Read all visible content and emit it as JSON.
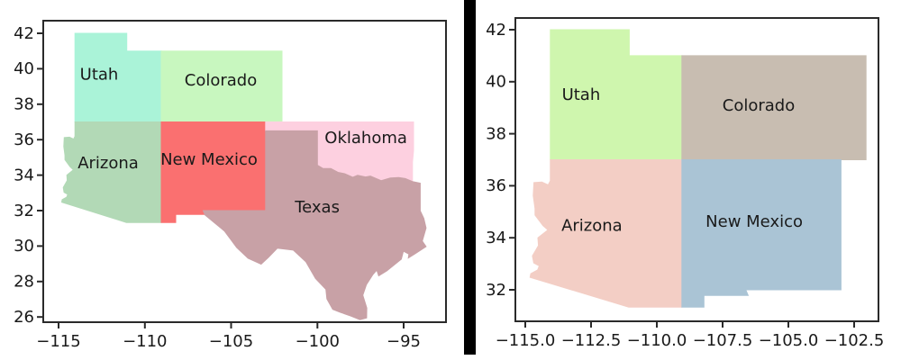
{
  "background_color": "#ffffff",
  "text_color": "#1a1a1a",
  "spine_color": "#2a2a2a",
  "divider": {
    "color": "#000000"
  },
  "chart_data": [
    {
      "type": "map",
      "title": "",
      "panel": "left",
      "xlabel": "",
      "ylabel": "",
      "grid": false,
      "xlim": [
        -115.888,
        -92.548
      ],
      "ylim": [
        25.706,
        42.711
      ],
      "x_ticks": [
        {
          "value": -115,
          "label": "−115"
        },
        {
          "value": -110,
          "label": "−110"
        },
        {
          "value": -105,
          "label": "−105"
        },
        {
          "value": -100,
          "label": "−100"
        },
        {
          "value": -95,
          "label": "−95"
        }
      ],
      "y_ticks": [
        {
          "value": 26,
          "label": "26"
        },
        {
          "value": 28,
          "label": "28"
        },
        {
          "value": 30,
          "label": "30"
        },
        {
          "value": 32,
          "label": "32"
        },
        {
          "value": 34,
          "label": "34"
        },
        {
          "value": 36,
          "label": "36"
        },
        {
          "value": 38,
          "label": "38"
        },
        {
          "value": 40,
          "label": "40"
        },
        {
          "value": 42,
          "label": "42"
        }
      ],
      "states": [
        {
          "name": "Utah",
          "label": "Utah",
          "color": "#aaf3d8",
          "label_lon": -112.65,
          "label_lat": 39.67,
          "polygon": [
            [
              -114.05,
              42
            ],
            [
              -111.05,
              42
            ],
            [
              -111.05,
              41
            ],
            [
              -109.05,
              41
            ],
            [
              -109.05,
              37
            ],
            [
              -114.05,
              37
            ]
          ]
        },
        {
          "name": "Colorado",
          "label": "Colorado",
          "color": "#c8f7bf",
          "label_lon": -105.6,
          "label_lat": 39.36,
          "polygon": [
            [
              -109.05,
              41
            ],
            [
              -102.05,
              41
            ],
            [
              -102.05,
              37
            ],
            [
              -109.05,
              37
            ]
          ]
        },
        {
          "name": "Arizona",
          "label": "Arizona",
          "color": "#b2d9b6",
          "label_lon": -112.13,
          "label_lat": 34.69,
          "polygon": [
            [
              -114.05,
              37
            ],
            [
              -109.05,
              37
            ],
            [
              -109.05,
              31.33
            ],
            [
              -111.07,
              31.33
            ],
            [
              -114.82,
              32.48
            ],
            [
              -114.79,
              32.62
            ],
            [
              -114.53,
              32.76
            ],
            [
              -114.47,
              32.92
            ],
            [
              -114.68,
              33.03
            ],
            [
              -114.73,
              33.3
            ],
            [
              -114.5,
              33.7
            ],
            [
              -114.52,
              34.0
            ],
            [
              -114.14,
              34.3
            ],
            [
              -114.33,
              34.47
            ],
            [
              -114.63,
              34.87
            ],
            [
              -114.63,
              35.12
            ],
            [
              -114.7,
              35.62
            ],
            [
              -114.67,
              36.12
            ],
            [
              -114.37,
              36.14
            ],
            [
              -114.13,
              36.03
            ],
            [
              -114.05,
              36.19
            ]
          ]
        },
        {
          "name": "New Mexico",
          "label": "New Mexico",
          "color": "#fa7070",
          "label_lon": -106.28,
          "label_lat": 34.89,
          "polygon": [
            [
              -109.05,
              37
            ],
            [
              -103.0,
              37
            ],
            [
              -103.0,
              32.0
            ],
            [
              -106.62,
              32.0
            ],
            [
              -106.53,
              31.78
            ],
            [
              -108.21,
              31.78
            ],
            [
              -108.21,
              31.33
            ],
            [
              -109.05,
              31.33
            ]
          ]
        },
        {
          "name": "Oklahoma",
          "label": "Oklahoma",
          "color": "#fdd0e0",
          "label_lon": -97.19,
          "label_lat": 36.11,
          "polygon": [
            [
              -103.0,
              37.0
            ],
            [
              -94.43,
              37.0
            ],
            [
              -94.43,
              35.4
            ],
            [
              -94.49,
              34.73
            ],
            [
              -94.49,
              33.64
            ],
            [
              -94.91,
              33.81
            ],
            [
              -95.29,
              33.87
            ],
            [
              -95.77,
              33.84
            ],
            [
              -96.31,
              33.69
            ],
            [
              -96.93,
              33.95
            ],
            [
              -97.21,
              33.9
            ],
            [
              -97.67,
              33.99
            ],
            [
              -97.95,
              33.88
            ],
            [
              -98.42,
              34.08
            ],
            [
              -98.81,
              34.16
            ],
            [
              -99.22,
              34.37
            ],
            [
              -99.69,
              34.38
            ],
            [
              -99.99,
              34.56
            ],
            [
              -100.0,
              36.5
            ],
            [
              -103.0,
              36.5
            ]
          ]
        },
        {
          "name": "Texas",
          "label": "Texas",
          "color": "#c8a1a6",
          "label_lon": -100.01,
          "label_lat": 32.2,
          "polygon": [
            [
              -103.0,
              36.5
            ],
            [
              -100.0,
              36.5
            ],
            [
              -100.0,
              34.56
            ],
            [
              -99.69,
              34.38
            ],
            [
              -99.22,
              34.37
            ],
            [
              -98.81,
              34.16
            ],
            [
              -98.42,
              34.08
            ],
            [
              -97.95,
              33.88
            ],
            [
              -97.67,
              33.99
            ],
            [
              -97.21,
              33.9
            ],
            [
              -96.93,
              33.95
            ],
            [
              -96.31,
              33.69
            ],
            [
              -95.77,
              33.84
            ],
            [
              -95.29,
              33.87
            ],
            [
              -94.91,
              33.81
            ],
            [
              -94.49,
              33.64
            ],
            [
              -94.04,
              33.55
            ],
            [
              -94.04,
              31.99
            ],
            [
              -93.83,
              31.56
            ],
            [
              -93.7,
              31.02
            ],
            [
              -93.92,
              30.28
            ],
            [
              -93.7,
              29.97
            ],
            [
              -94.35,
              29.56
            ],
            [
              -94.73,
              29.33
            ],
            [
              -94.7,
              29.55
            ],
            [
              -95.02,
              29.71
            ],
            [
              -95.14,
              29.26
            ],
            [
              -95.98,
              28.6
            ],
            [
              -96.45,
              28.32
            ],
            [
              -96.56,
              28.64
            ],
            [
              -96.78,
              28.4
            ],
            [
              -97.16,
              27.83
            ],
            [
              -97.37,
              27.23
            ],
            [
              -97.14,
              26.51
            ],
            [
              -97.15,
              25.95
            ],
            [
              -97.53,
              25.85
            ],
            [
              -98.08,
              26.06
            ],
            [
              -98.69,
              26.27
            ],
            [
              -99.11,
              26.43
            ],
            [
              -99.45,
              27.02
            ],
            [
              -99.51,
              27.56
            ],
            [
              -100.11,
              28.17
            ],
            [
              -100.67,
              29.11
            ],
            [
              -101.4,
              29.77
            ],
            [
              -102.32,
              29.88
            ],
            [
              -102.84,
              29.36
            ],
            [
              -103.26,
              28.98
            ],
            [
              -104.02,
              29.31
            ],
            [
              -104.68,
              29.92
            ],
            [
              -105.39,
              30.85
            ],
            [
              -106.51,
              31.75
            ],
            [
              -106.62,
              32.0
            ],
            [
              -103.0,
              32.0
            ]
          ]
        }
      ]
    },
    {
      "type": "map",
      "title": "",
      "panel": "right",
      "xlabel": "",
      "ylabel": "",
      "grid": false,
      "xlim": [
        -115.377,
        -101.577
      ],
      "ylim": [
        30.788,
        42.45
      ],
      "x_ticks": [
        {
          "value": -115.0,
          "label": "−115.0"
        },
        {
          "value": -112.5,
          "label": "−112.5"
        },
        {
          "value": -110.0,
          "label": "−110.0"
        },
        {
          "value": -107.5,
          "label": "−107.5"
        },
        {
          "value": -105.0,
          "label": "−105.0"
        },
        {
          "value": -102.5,
          "label": "−102.5"
        }
      ],
      "y_ticks": [
        {
          "value": 32,
          "label": "32"
        },
        {
          "value": 34,
          "label": "34"
        },
        {
          "value": 36,
          "label": "36"
        },
        {
          "value": 38,
          "label": "38"
        },
        {
          "value": 40,
          "label": "40"
        },
        {
          "value": 42,
          "label": "42"
        }
      ],
      "states": [
        {
          "name": "Utah",
          "label": "Utah",
          "color": "#cff6ae",
          "label_lon": -112.88,
          "label_lat": 39.51,
          "polygon": [
            [
              -114.05,
              42
            ],
            [
              -111.05,
              42
            ],
            [
              -111.05,
              41
            ],
            [
              -109.05,
              41
            ],
            [
              -109.05,
              37
            ],
            [
              -114.05,
              37
            ]
          ]
        },
        {
          "name": "Colorado",
          "label": "Colorado",
          "color": "#c8bdb1",
          "label_lon": -106.13,
          "label_lat": 39.09,
          "polygon": [
            [
              -109.05,
              41
            ],
            [
              -102.05,
              41
            ],
            [
              -102.05,
              37
            ],
            [
              -109.05,
              37
            ]
          ]
        },
        {
          "name": "Arizona",
          "label": "Arizona",
          "color": "#f3cec5",
          "label_lon": -112.47,
          "label_lat": 34.46,
          "polygon": [
            [
              -114.05,
              37
            ],
            [
              -109.05,
              37
            ],
            [
              -109.05,
              31.33
            ],
            [
              -111.07,
              31.33
            ],
            [
              -114.82,
              32.48
            ],
            [
              -114.79,
              32.62
            ],
            [
              -114.53,
              32.76
            ],
            [
              -114.47,
              32.92
            ],
            [
              -114.68,
              33.03
            ],
            [
              -114.73,
              33.3
            ],
            [
              -114.5,
              33.7
            ],
            [
              -114.52,
              34.0
            ],
            [
              -114.14,
              34.3
            ],
            [
              -114.33,
              34.47
            ],
            [
              -114.63,
              34.87
            ],
            [
              -114.63,
              35.12
            ],
            [
              -114.7,
              35.62
            ],
            [
              -114.67,
              36.12
            ],
            [
              -114.37,
              36.14
            ],
            [
              -114.13,
              36.03
            ],
            [
              -114.05,
              36.19
            ]
          ]
        },
        {
          "name": "New Mexico",
          "label": "New Mexico",
          "color": "#aac4d5",
          "label_lon": -106.3,
          "label_lat": 34.63,
          "polygon": [
            [
              -109.05,
              37
            ],
            [
              -103.0,
              37
            ],
            [
              -103.0,
              32.0
            ],
            [
              -106.62,
              32.0
            ],
            [
              -106.53,
              31.78
            ],
            [
              -108.21,
              31.78
            ],
            [
              -108.21,
              31.33
            ],
            [
              -109.05,
              31.33
            ]
          ]
        }
      ]
    }
  ]
}
